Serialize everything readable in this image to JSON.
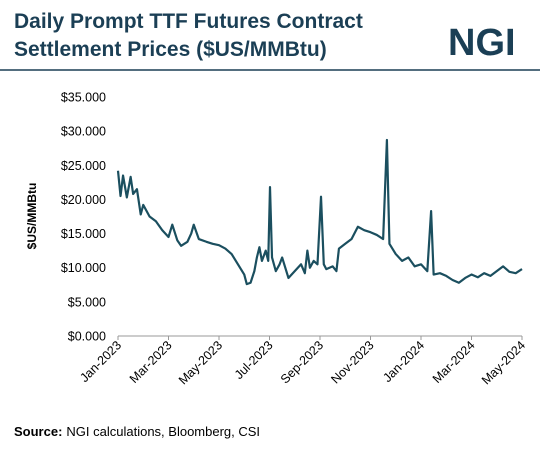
{
  "chart_data": {
    "type": "line",
    "title_lines": [
      "Daily Prompt TTF Futures Contract",
      "Settlement Prices ($US/MMBtu)"
    ],
    "logo": "NGI",
    "ylabel": "$US/MMBtu",
    "source_label": "Source:",
    "source_text": "NGI calculations, Bloomberg, CSI",
    "color": "#1b4f5f",
    "xlim": [
      0,
      16
    ],
    "xticks": [
      {
        "value": 0,
        "label": "Jan-2023"
      },
      {
        "value": 2,
        "label": "Mar-2023"
      },
      {
        "value": 4,
        "label": "May-2023"
      },
      {
        "value": 6,
        "label": "Jul-2023"
      },
      {
        "value": 8,
        "label": "Sep-2023"
      },
      {
        "value": 10,
        "label": "Nov-2023"
      },
      {
        "value": 12,
        "label": "Jan-2024"
      },
      {
        "value": 14,
        "label": "Mar-2024"
      },
      {
        "value": 16,
        "label": "May-2024"
      }
    ],
    "ylim": [
      0,
      35
    ],
    "yticks": [
      {
        "value": 0,
        "label": "$0.000"
      },
      {
        "value": 5,
        "label": "$5.000"
      },
      {
        "value": 10,
        "label": "$10.000"
      },
      {
        "value": 15,
        "label": "$15.000"
      },
      {
        "value": 20,
        "label": "$20.000"
      },
      {
        "value": 25,
        "label": "$25.000"
      },
      {
        "value": 30,
        "label": "$30.000"
      },
      {
        "value": 35,
        "label": "$35.000"
      }
    ],
    "x": [
      0,
      0.1,
      0.2,
      0.35,
      0.5,
      0.6,
      0.75,
      0.9,
      1.0,
      1.25,
      1.5,
      1.75,
      2.0,
      2.15,
      2.35,
      2.5,
      2.75,
      2.9,
      3.0,
      3.2,
      3.5,
      3.75,
      4.0,
      4.25,
      4.5,
      4.75,
      5.0,
      5.1,
      5.25,
      5.4,
      5.5,
      5.6,
      5.7,
      5.85,
      5.95,
      6.02,
      6.1,
      6.25,
      6.4,
      6.5,
      6.75,
      7.0,
      7.25,
      7.4,
      7.5,
      7.6,
      7.75,
      7.9,
      8.04,
      8.15,
      8.25,
      8.5,
      8.65,
      8.75,
      9.0,
      9.25,
      9.5,
      9.75,
      10.0,
      10.25,
      10.5,
      10.65,
      10.75,
      11.0,
      11.25,
      11.5,
      11.75,
      12.0,
      12.25,
      12.4,
      12.5,
      12.75,
      13.0,
      13.25,
      13.5,
      13.75,
      14.0,
      14.25,
      14.5,
      14.75,
      15.0,
      15.25,
      15.5,
      15.75,
      16.0
    ],
    "values": [
      24.2,
      20.5,
      23.5,
      20.3,
      23.3,
      20.8,
      21.5,
      17.8,
      19.2,
      17.5,
      16.8,
      15.5,
      14.5,
      16.3,
      14.0,
      13.2,
      13.8,
      15.0,
      16.3,
      14.2,
      13.8,
      13.5,
      13.3,
      12.8,
      12.0,
      10.5,
      9.0,
      7.6,
      7.8,
      9.5,
      11.5,
      13.0,
      11.0,
      12.5,
      11.0,
      21.8,
      11.5,
      9.5,
      10.5,
      11.5,
      8.5,
      9.5,
      10.5,
      9.2,
      12.5,
      10.0,
      11.0,
      10.5,
      20.4,
      10.5,
      9.8,
      10.2,
      9.5,
      12.8,
      13.5,
      14.2,
      16.0,
      15.5,
      15.2,
      14.8,
      14.2,
      28.7,
      13.5,
      12.0,
      11.0,
      11.5,
      10.2,
      10.5,
      9.5,
      18.3,
      9.0,
      9.2,
      8.8,
      8.2,
      7.8,
      8.5,
      9.0,
      8.6,
      9.2,
      8.8,
      9.5,
      10.2,
      9.4,
      9.2,
      9.8
    ]
  }
}
